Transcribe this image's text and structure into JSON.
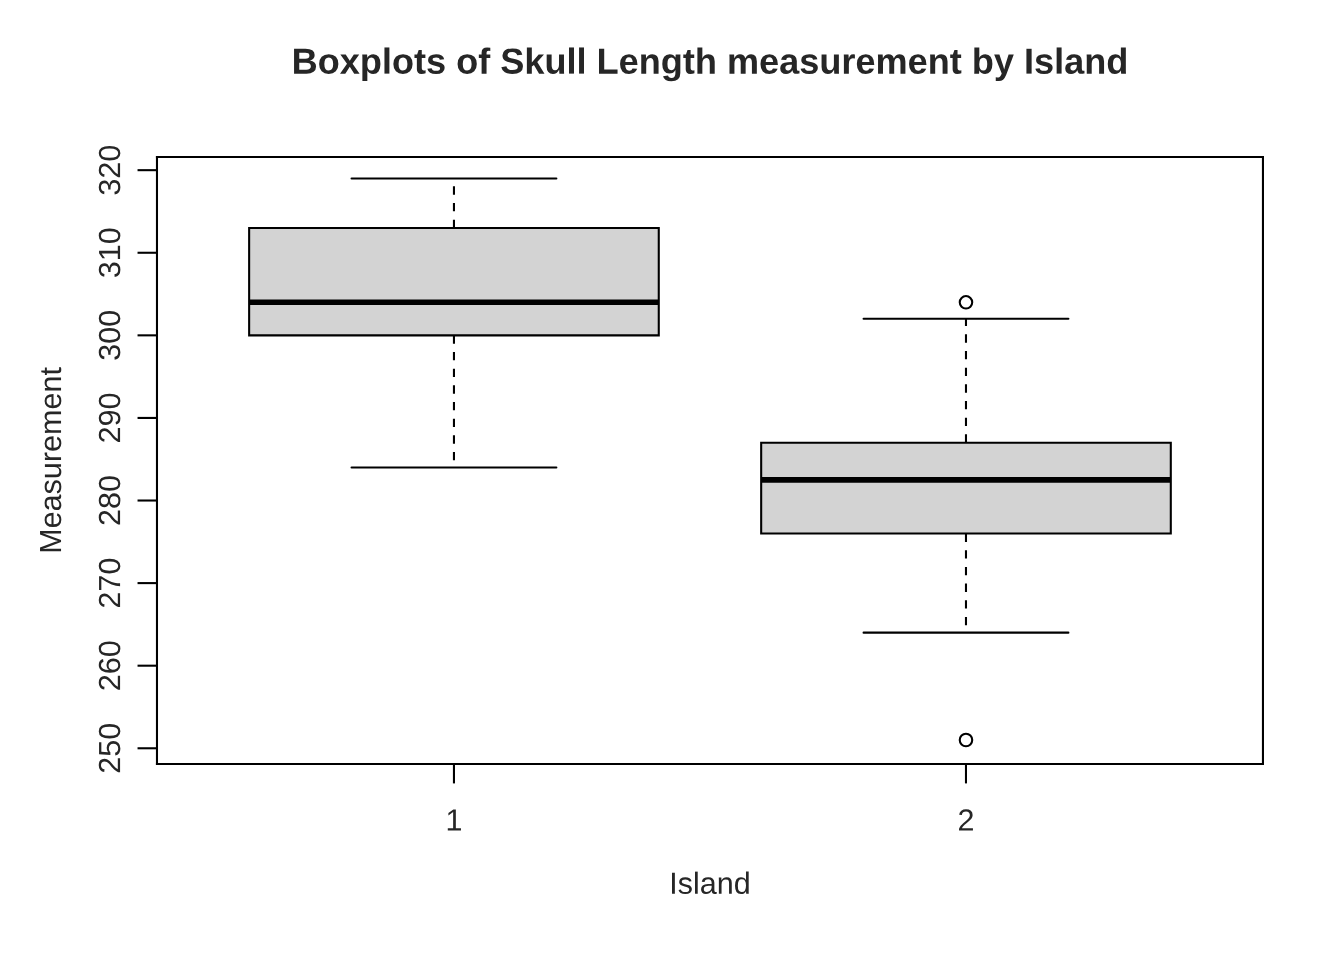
{
  "chart_data": {
    "type": "box",
    "title": "Boxplots of Skull Length measurement by Island",
    "xlabel": "Island",
    "ylabel": "Measurement",
    "categories": [
      "1",
      "2"
    ],
    "boxes": [
      {
        "low": 284,
        "q1": 300,
        "median": 304,
        "q3": 313,
        "high": 319
      },
      {
        "low": 264,
        "q1": 276,
        "median": 282.5,
        "q3": 287,
        "high": 302,
        "outliers": [
          304,
          251
        ]
      }
    ],
    "colors": [
      "#d3d3d3",
      "#d3d3d3"
    ],
    "ylim": [
      248.1,
      321.6
    ],
    "yticks": [
      250,
      260,
      270,
      280,
      290,
      300,
      310,
      320
    ]
  }
}
